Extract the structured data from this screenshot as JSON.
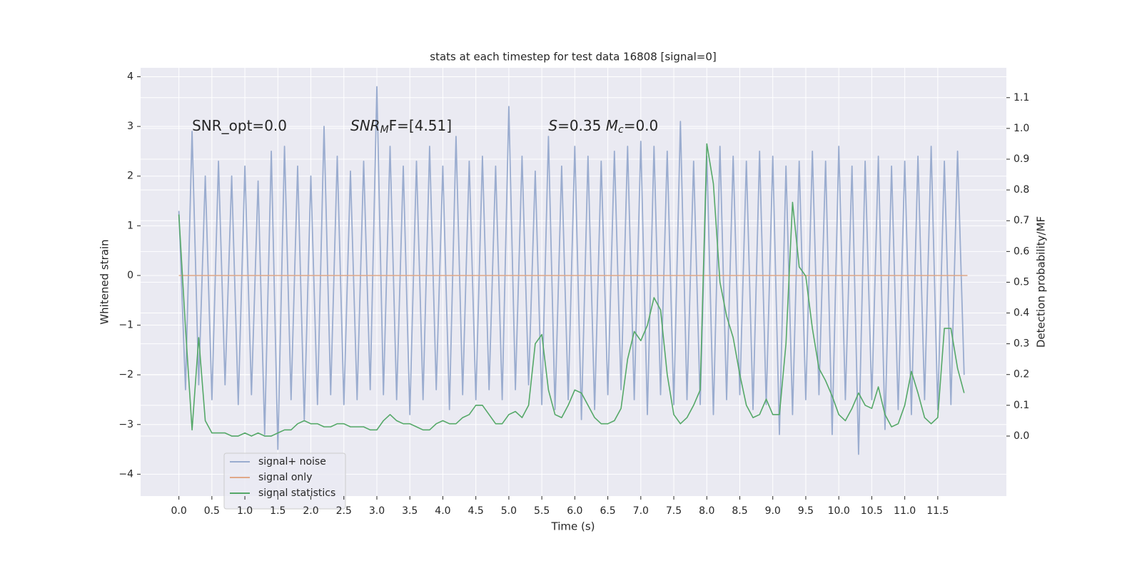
{
  "chart_data": {
    "type": "line",
    "title": "stats at each timestep for test data 16808 [signal=0]",
    "xlabel": "Time (s)",
    "ylabel": "Whitened strain",
    "y2label": "Detection probability/MF",
    "annotations": [
      {
        "parts": [
          "SNR_opt=0.0"
        ],
        "x": 0.2,
        "y": 3.0
      },
      {
        "parts": [
          "SNR",
          "M",
          "F=[4.51]"
        ],
        "x": 2.6,
        "y": 3.0
      },
      {
        "parts": [
          "S",
          "=0.35   ",
          "M",
          "c",
          "=0.0"
        ],
        "x": 5.6,
        "y": 3.0
      }
    ],
    "xlim": [
      -0.58,
      12.54
    ],
    "ylim": [
      -4.44,
      4.18
    ],
    "y2lim": [
      -0.195,
      1.197
    ],
    "xticks": [
      {
        "value": 0,
        "label": "0.0"
      },
      {
        "value": 0.5,
        "label": "0.5"
      },
      {
        "value": 1,
        "label": "1.0"
      },
      {
        "value": 1.5,
        "label": "1.5"
      },
      {
        "value": 2,
        "label": "2.0"
      },
      {
        "value": 2.5,
        "label": "2.5"
      },
      {
        "value": 3,
        "label": "3.0"
      },
      {
        "value": 3.5,
        "label": "3.5"
      },
      {
        "value": 4,
        "label": "4.0"
      },
      {
        "value": 4.5,
        "label": "4.5"
      },
      {
        "value": 5,
        "label": "5.0"
      },
      {
        "value": 5.5,
        "label": "5.5"
      },
      {
        "value": 6,
        "label": "6.0"
      },
      {
        "value": 6.5,
        "label": "6.5"
      },
      {
        "value": 7,
        "label": "7.0"
      },
      {
        "value": 7.5,
        "label": "7.5"
      },
      {
        "value": 8,
        "label": "8.0"
      },
      {
        "value": 8.5,
        "label": "8.5"
      },
      {
        "value": 9,
        "label": "9.0"
      },
      {
        "value": 9.5,
        "label": "9.5"
      },
      {
        "value": 10,
        "label": "10.0"
      },
      {
        "value": 10.5,
        "label": "10.5"
      },
      {
        "value": 11,
        "label": "11.0"
      },
      {
        "value": 11.5,
        "label": "11.5"
      }
    ],
    "yticks": [
      {
        "value": -4,
        "label": "−4"
      },
      {
        "value": -3,
        "label": "−3"
      },
      {
        "value": -2,
        "label": "−2"
      },
      {
        "value": -1,
        "label": "−1"
      },
      0,
      1,
      2,
      3,
      4
    ],
    "y2ticks": [
      {
        "value": 0,
        "label": "0.0"
      },
      {
        "value": 0.1,
        "label": "0.1"
      },
      {
        "value": 0.2,
        "label": "0.2"
      },
      {
        "value": 0.3,
        "label": "0.3"
      },
      {
        "value": 0.4,
        "label": "0.4"
      },
      {
        "value": 0.5,
        "label": "0.5"
      },
      {
        "value": 0.6,
        "label": "0.6"
      },
      {
        "value": 0.7,
        "label": "0.7"
      },
      {
        "value": 0.8,
        "label": "0.8"
      },
      {
        "value": 0.9,
        "label": "0.9"
      },
      {
        "value": 1,
        "label": "1.0"
      },
      {
        "value": 1.1,
        "label": "1.1"
      }
    ],
    "grid": true,
    "legend": "lower left",
    "x": [
      0,
      0.1,
      0.2,
      0.3,
      0.4,
      0.5,
      0.6,
      0.7,
      0.8,
      0.9,
      1,
      1.1,
      1.2,
      1.3,
      1.4,
      1.5,
      1.6,
      1.7,
      1.8,
      1.9,
      2,
      2.1,
      2.2,
      2.3,
      2.4,
      2.5,
      2.6,
      2.7,
      2.8,
      2.9,
      3,
      3.1,
      3.2,
      3.3,
      3.4,
      3.5,
      3.6,
      3.7,
      3.8,
      3.9,
      4,
      4.1,
      4.2,
      4.3,
      4.4,
      4.5,
      4.6,
      4.7,
      4.8,
      4.9,
      5,
      5.1,
      5.2,
      5.3,
      5.4,
      5.5,
      5.6,
      5.7,
      5.8,
      5.9,
      6,
      6.1,
      6.2,
      6.3,
      6.4,
      6.5,
      6.6,
      6.7,
      6.8,
      6.9,
      7,
      7.1,
      7.2,
      7.3,
      7.4,
      7.5,
      7.6,
      7.7,
      7.8,
      7.9,
      8,
      8.1,
      8.2,
      8.3,
      8.4,
      8.5,
      8.6,
      8.7,
      8.8,
      8.9,
      9,
      9.1,
      9.2,
      9.3,
      9.4,
      9.5,
      9.6,
      9.7,
      9.8,
      9.9,
      10,
      10.1,
      10.2,
      10.3,
      10.4,
      10.5,
      10.6,
      10.7,
      10.8,
      10.9,
      11,
      11.1,
      11.2,
      11.3,
      11.4,
      11.5,
      11.6,
      11.7,
      11.8,
      11.9
    ],
    "series": [
      {
        "name": "signal+ noise",
        "color": "#9aaccf",
        "values": [
          1.3,
          -2.3,
          2.9,
          -2.2,
          2.0,
          -2.5,
          2.3,
          -2.2,
          2.0,
          -2.6,
          2.2,
          -2.4,
          1.9,
          -3.2,
          2.5,
          -3.5,
          2.6,
          -2.5,
          2.2,
          -2.9,
          2.0,
          -2.6,
          3.0,
          -2.4,
          2.4,
          -2.6,
          2.1,
          -2.5,
          2.3,
          -2.3,
          3.8,
          -2.4,
          2.6,
          -2.5,
          2.2,
          -2.8,
          2.3,
          -2.5,
          2.6,
          -2.3,
          2.2,
          -2.7,
          2.8,
          -2.4,
          2.3,
          -2.5,
          2.4,
          -2.3,
          2.2,
          -2.5,
          3.4,
          -2.3,
          2.4,
          -2.2,
          2.1,
          -2.6,
          2.8,
          -2.7,
          2.2,
          -2.5,
          2.6,
          -2.9,
          2.4,
          -2.7,
          2.3,
          -2.4,
          2.5,
          -2.3,
          2.6,
          -2.5,
          2.7,
          -2.8,
          2.6,
          -2.4,
          2.5,
          -2.6,
          3.1,
          -2.5,
          2.3,
          -2.6,
          2.4,
          -2.8,
          2.6,
          -2.5,
          2.4,
          -2.4,
          2.3,
          -2.7,
          2.5,
          -2.6,
          2.4,
          -3.2,
          2.2,
          -2.8,
          2.3,
          -2.5,
          2.5,
          -2.4,
          2.3,
          -3.2,
          2.6,
          -2.5,
          2.2,
          -3.6,
          2.3,
          -2.5,
          2.4,
          -3.1,
          2.2,
          -2.7,
          2.3,
          -2.8,
          2.4,
          -2.5,
          2.6,
          -2.7,
          2.3,
          -2.6,
          2.5,
          -2.0
        ]
      },
      {
        "name": "signal only",
        "color": "#e0a888",
        "x": [
          0,
          11.95
        ],
        "values": [
          0,
          0
        ]
      },
      {
        "name": "signal statistics",
        "color": "#55a868",
        "axis": "y2",
        "values": [
          0.72,
          0.35,
          0.02,
          0.32,
          0.05,
          0.01,
          0.01,
          0.01,
          0,
          0,
          0.01,
          0,
          0.01,
          0,
          0,
          0.01,
          0.02,
          0.02,
          0.04,
          0.05,
          0.04,
          0.04,
          0.03,
          0.03,
          0.04,
          0.04,
          0.03,
          0.03,
          0.03,
          0.02,
          0.02,
          0.05,
          0.07,
          0.05,
          0.04,
          0.04,
          0.03,
          0.02,
          0.02,
          0.04,
          0.05,
          0.04,
          0.04,
          0.06,
          0.07,
          0.1,
          0.1,
          0.07,
          0.04,
          0.04,
          0.07,
          0.08,
          0.06,
          0.1,
          0.3,
          0.33,
          0.15,
          0.07,
          0.06,
          0.1,
          0.15,
          0.14,
          0.1,
          0.06,
          0.04,
          0.04,
          0.05,
          0.09,
          0.25,
          0.34,
          0.31,
          0.36,
          0.45,
          0.41,
          0.2,
          0.07,
          0.04,
          0.06,
          0.1,
          0.15,
          0.95,
          0.82,
          0.5,
          0.39,
          0.32,
          0.2,
          0.1,
          0.06,
          0.07,
          0.12,
          0.07,
          0.07,
          0.3,
          0.76,
          0.55,
          0.52,
          0.35,
          0.22,
          0.18,
          0.13,
          0.07,
          0.05,
          0.09,
          0.14,
          0.1,
          0.09,
          0.16,
          0.07,
          0.03,
          0.04,
          0.1,
          0.21,
          0.14,
          0.06,
          0.04,
          0.06,
          0.35,
          0.35,
          0.22,
          0.14
        ]
      }
    ]
  }
}
